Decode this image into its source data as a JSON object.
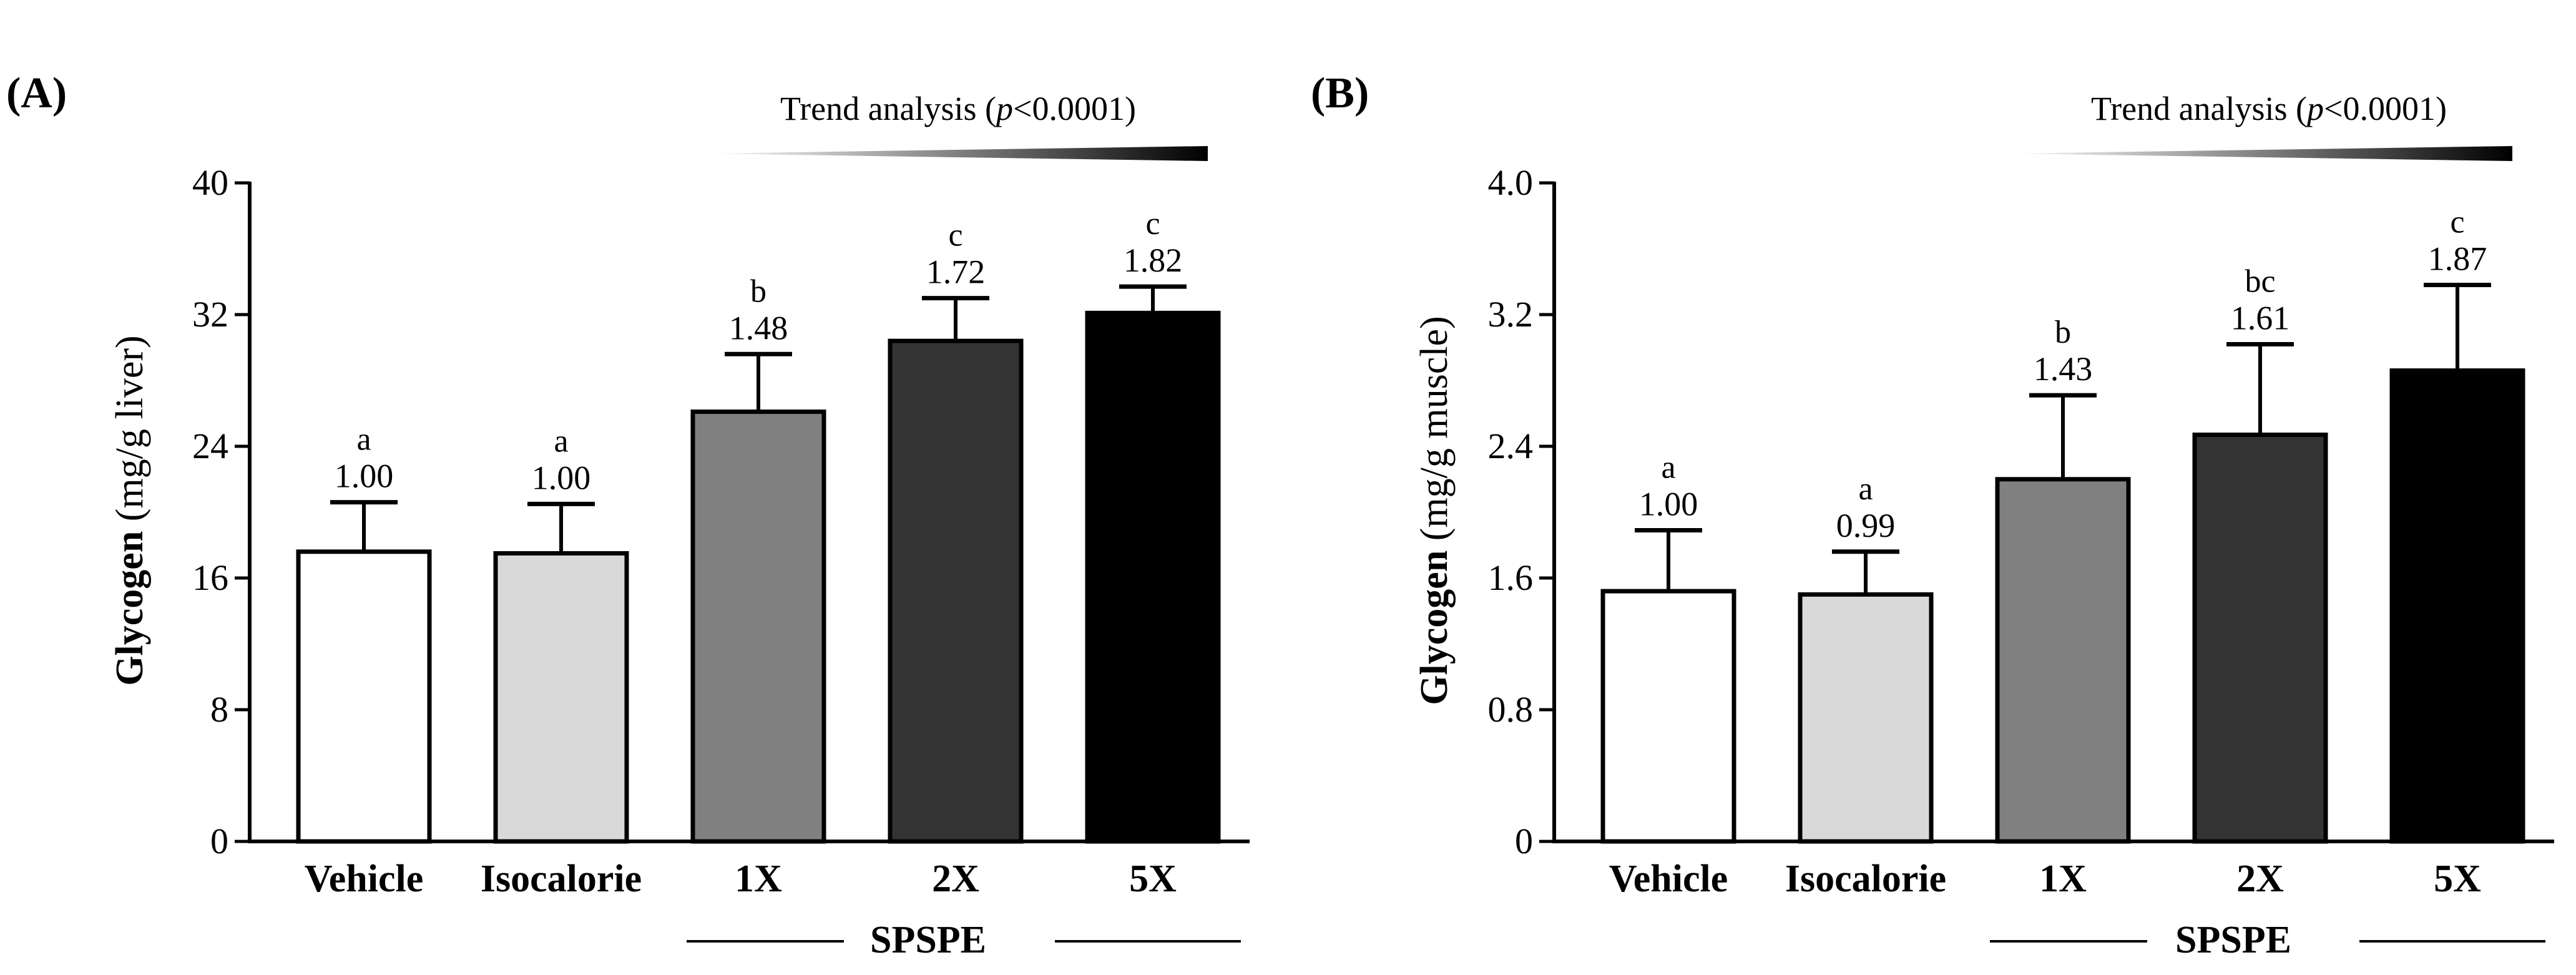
{
  "chart_data": [
    {
      "panel_label": "(A)",
      "type": "bar",
      "ylabel_bold": "Glycogen",
      "ylabel_rest": " (mg/g liver)",
      "ylim": [
        0,
        40
      ],
      "yticks": [
        "0",
        "8",
        "16",
        "24",
        "32",
        "40"
      ],
      "ytick_values": [
        0,
        8,
        16,
        24,
        32,
        40
      ],
      "categories": [
        "Vehicle",
        "Isocalorie",
        "1X",
        "2X",
        "5X"
      ],
      "values": [
        17.6,
        17.5,
        26.1,
        30.4,
        32.1
      ],
      "errors": [
        3.0,
        3.0,
        3.5,
        2.6,
        1.6
      ],
      "fold_labels": [
        "1.00",
        "1.00",
        "1.48",
        "1.72",
        "1.82"
      ],
      "significance": [
        "a",
        "a",
        "b",
        "c",
        "c"
      ],
      "colors": [
        "#ffffff",
        "#d9d9d9",
        "#808080",
        "#333333",
        "#000000"
      ],
      "group_label": "SPSPE",
      "trend": {
        "prefix": "Trend analysis (",
        "p": "p",
        "suffix": "<0.0001)"
      }
    },
    {
      "panel_label": "(B)",
      "type": "bar",
      "ylabel_bold": "Glycogen",
      "ylabel_rest": " (mg/g muscle)",
      "ylim": [
        0,
        4.0
      ],
      "yticks": [
        "0",
        "0.8",
        "1.6",
        "2.4",
        "3.2",
        "4.0"
      ],
      "ytick_values": [
        0,
        0.8,
        1.6,
        2.4,
        3.2,
        4.0
      ],
      "categories": [
        "Vehicle",
        "Isocalorie",
        "1X",
        "2X",
        "5X"
      ],
      "values": [
        1.52,
        1.5,
        2.2,
        2.47,
        2.86
      ],
      "errors": [
        0.37,
        0.26,
        0.51,
        0.55,
        0.52
      ],
      "fold_labels": [
        "1.00",
        "0.99",
        "1.43",
        "1.61",
        "1.87"
      ],
      "significance": [
        "a",
        "a",
        "b",
        "bc",
        "c"
      ],
      "colors": [
        "#ffffff",
        "#d9d9d9",
        "#808080",
        "#333333",
        "#000000"
      ],
      "group_label": "SPSPE",
      "trend": {
        "prefix": "Trend analysis (",
        "p": "p",
        "suffix": "<0.0001)"
      }
    }
  ]
}
